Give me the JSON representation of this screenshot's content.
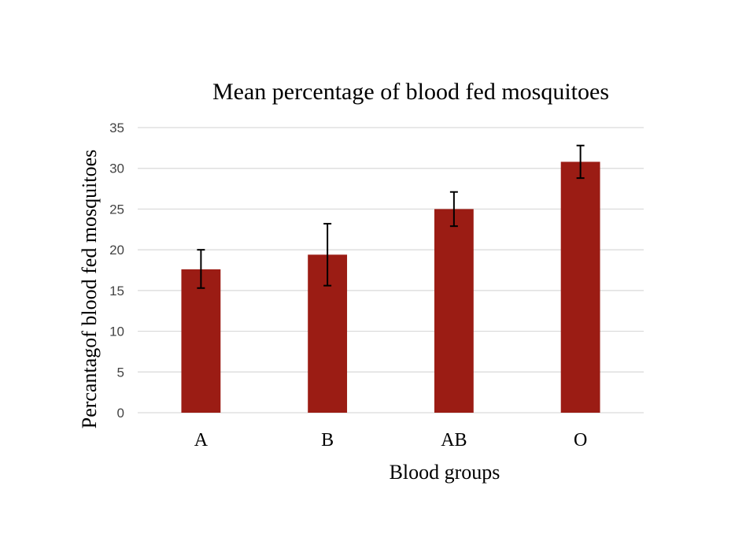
{
  "chart_data": {
    "type": "bar",
    "title": "Mean percentage  of blood  fed mosquitoes",
    "xlabel": "Blood groups",
    "ylabel": "Percantagof blood fed mosquitoes",
    "categories": [
      "A",
      "B",
      "AB",
      "O"
    ],
    "values": [
      17.6,
      19.4,
      25.0,
      30.8
    ],
    "error_low": [
      15.3,
      15.6,
      22.9,
      28.8
    ],
    "error_high": [
      20.0,
      23.2,
      27.1,
      32.8
    ],
    "ylim": [
      0,
      35
    ],
    "yticks": [
      0,
      5,
      10,
      15,
      20,
      25,
      30,
      35
    ],
    "grid": true,
    "legend": "none",
    "bar_color": "#9b1c14",
    "error_color": "#000000"
  }
}
